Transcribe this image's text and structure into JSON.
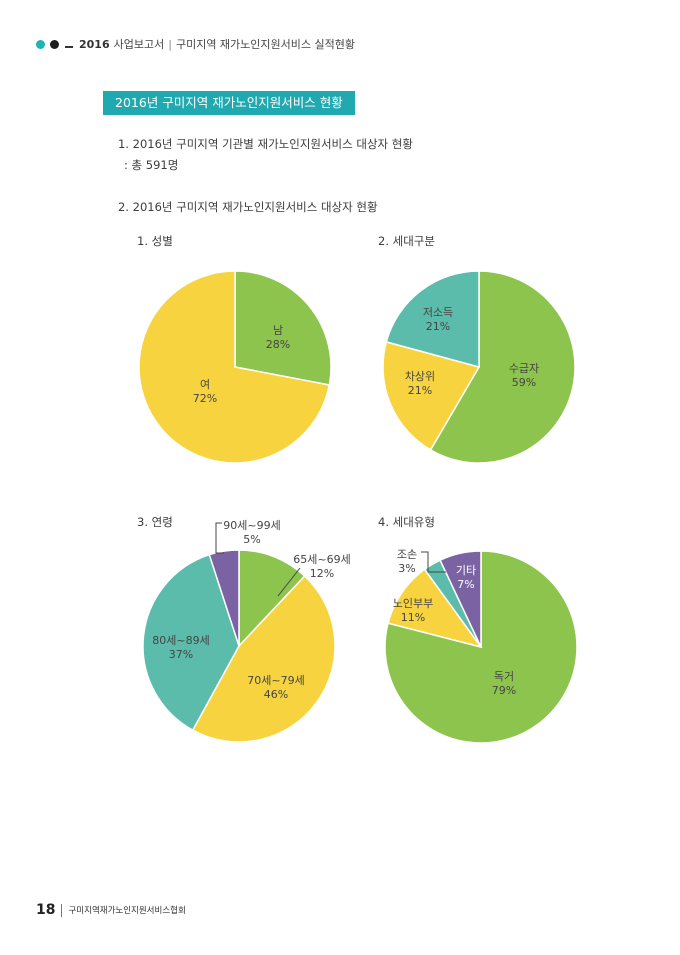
{
  "header": {
    "year": "2016",
    "doc": "사업보고서",
    "subtitle": "구미지역 재가노인지원서비스 실적현황"
  },
  "section_title": "2016년 구미지역 재가노인지원서비스 현황",
  "item1": {
    "title": "1. 2016년 구미지역 기관별 재가노인지원서비스 대상자 현황",
    "total": ": 총 591명"
  },
  "item2": {
    "title": "2. 2016년 구미지역 재가노인지원서비스 대상자 현황"
  },
  "colors": {
    "green": "#8dc44e",
    "yellow": "#f7d43f",
    "teal": "#5bbcab",
    "purple": "#7b62a3",
    "accent": "#20aab0"
  },
  "chart_data": [
    {
      "type": "pie",
      "title": "1. 성별",
      "slices": [
        {
          "label": "남",
          "value": 28,
          "pct": "28%",
          "color": "#8dc44e"
        },
        {
          "label": "여",
          "value": 72,
          "pct": "72%",
          "color": "#f7d43f"
        }
      ]
    },
    {
      "type": "pie",
      "title": "2. 세대구분",
      "slices": [
        {
          "label": "수급자",
          "value": 59,
          "pct": "59%",
          "color": "#8dc44e"
        },
        {
          "label": "차상위",
          "value": 21,
          "pct": "21%",
          "color": "#f7d43f"
        },
        {
          "label": "저소득",
          "value": 21,
          "pct": "21%",
          "color": "#5bbcab"
        }
      ]
    },
    {
      "type": "pie",
      "title": "3. 연령",
      "slices": [
        {
          "label": "65세~69세",
          "value": 12,
          "pct": "12%",
          "color": "#8dc44e"
        },
        {
          "label": "70세~79세",
          "value": 46,
          "pct": "46%",
          "color": "#f7d43f"
        },
        {
          "label": "80세~89세",
          "value": 37,
          "pct": "37%",
          "color": "#5bbcab"
        },
        {
          "label": "90세~99세",
          "value": 5,
          "pct": "5%",
          "color": "#7b62a3"
        }
      ]
    },
    {
      "type": "pie",
      "title": "4. 세대유형",
      "slices": [
        {
          "label": "독거",
          "value": 79,
          "pct": "79%",
          "color": "#8dc44e"
        },
        {
          "label": "노인부부",
          "value": 11,
          "pct": "11%",
          "color": "#f7d43f"
        },
        {
          "label": "조손",
          "value": 3,
          "pct": "3%",
          "color": "#5bbcab"
        },
        {
          "label": "기타",
          "value": 7,
          "pct": "7%",
          "color": "#7b62a3"
        }
      ]
    }
  ],
  "footer": {
    "page": "18",
    "org": "구미지역재가노인지원서비스협회"
  }
}
